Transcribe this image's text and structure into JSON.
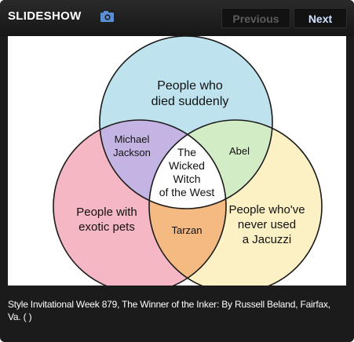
{
  "header": {
    "title": "SLIDESHOW",
    "camera_icon": "camera-icon",
    "previous_label": "Previous",
    "next_label": "Next"
  },
  "image": {
    "circle_top": {
      "line1": "People who",
      "line2": "died suddenly",
      "color": "#bfe3ee"
    },
    "circle_left": {
      "line1": "People with",
      "line2": "exotic pets",
      "color": "#f6b7c4"
    },
    "circle_right": {
      "line1": "People who've",
      "line2": "never used",
      "line3": "a Jacuzzi",
      "color": "#fbf1c4"
    },
    "top_left": {
      "line1": "Michael",
      "line2": "Jackson",
      "color": "#c4b4e3"
    },
    "top_right": {
      "line1": "Abel",
      "color": "#d2edc6"
    },
    "bottom": {
      "line1": "Tarzan",
      "color": "#f5b982"
    },
    "center": {
      "line1": "The",
      "line2": "Wicked",
      "line3": "Witch",
      "line4": "of the West",
      "color": "#ffffff"
    }
  },
  "caption": "Style Invitational Week 879, The Winner of the Inker: By Russell Beland, Fairfax, Va. ( )",
  "colors": {
    "background": "#1b1b1b",
    "next_text": "#cfe2ff",
    "previous_text": "#5c5c5c"
  }
}
